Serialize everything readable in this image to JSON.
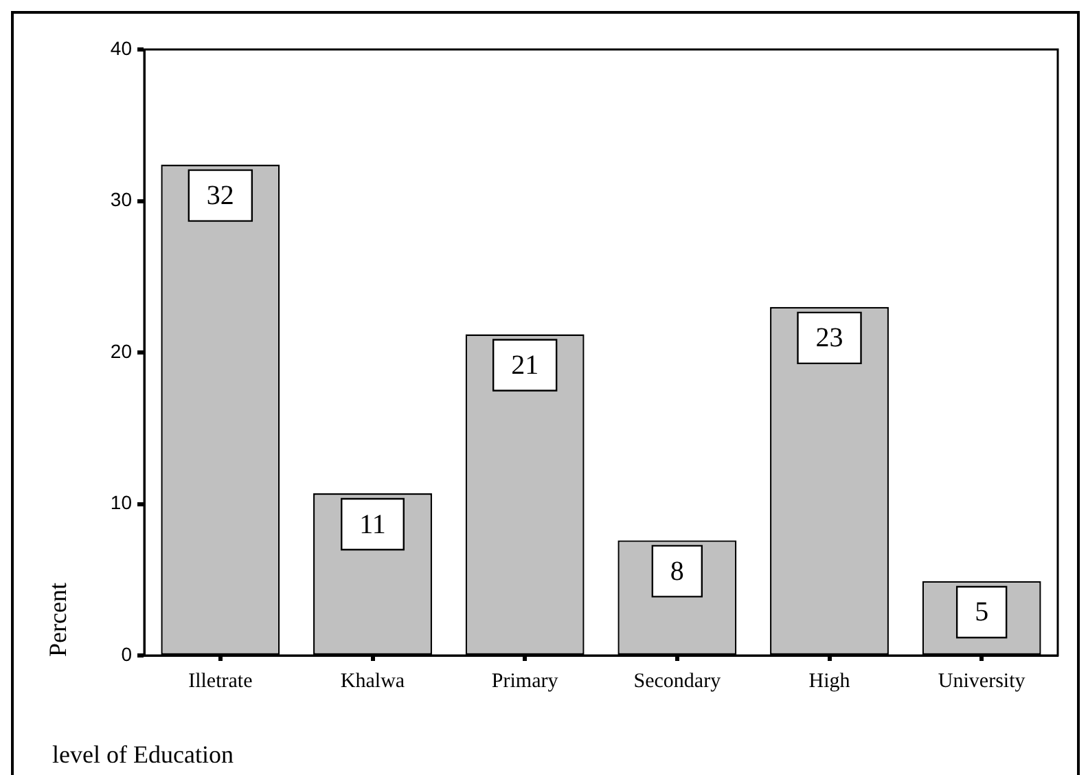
{
  "chart_data": {
    "type": "bar",
    "xlabel": "level of Education",
    "ylabel": "Percent",
    "categories": [
      "Illetrate",
      "Khalwa",
      "Primary",
      "Secondary",
      "High",
      "University"
    ],
    "values": [
      32.4,
      10.7,
      21.2,
      7.6,
      23.0,
      4.9
    ],
    "value_labels": [
      "32",
      "11",
      "21",
      "8",
      "23",
      "5"
    ],
    "color": "#c0c0c0",
    "ylim": [
      0,
      40
    ],
    "yticks": [
      0,
      10,
      20,
      30,
      40
    ],
    "grid": false
  }
}
